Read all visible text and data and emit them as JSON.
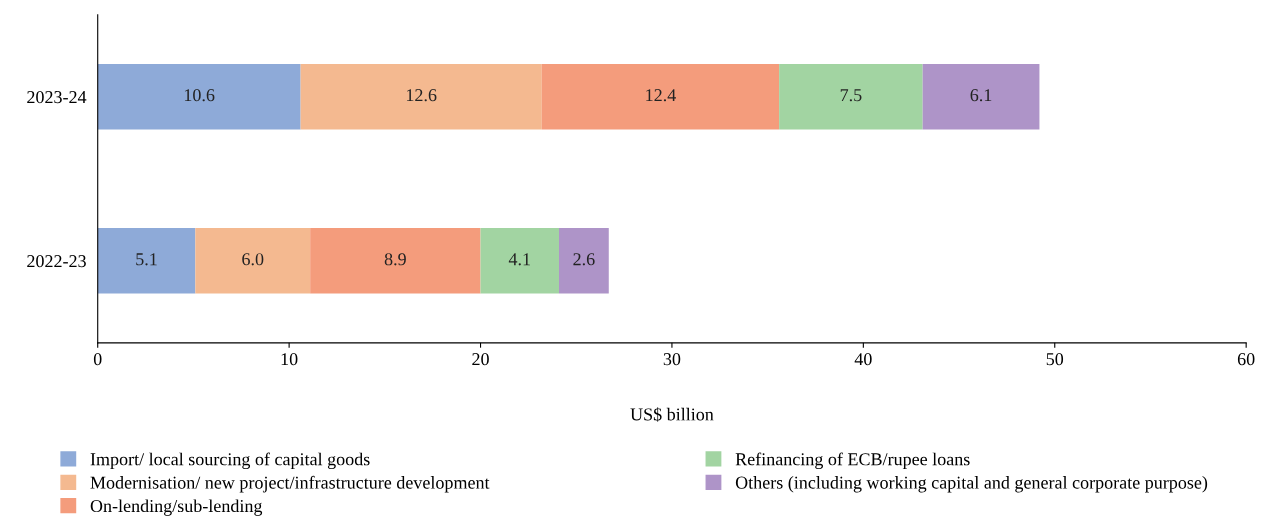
{
  "chart_data": {
    "type": "bar",
    "orientation": "horizontal",
    "stacked": true,
    "xlabel": "US$ billion",
    "categories": [
      "2023-24",
      "2022-23"
    ],
    "xlim": [
      0,
      60
    ],
    "xticks": [
      0,
      10,
      20,
      30,
      40,
      50,
      60
    ],
    "grid": false,
    "legend": "bottom",
    "series": [
      {
        "name": "Import/ local sourcing of capital goods",
        "color": "#8eaad8",
        "values": [
          10.6,
          5.1
        ],
        "value_labels": [
          "10.6",
          "5.1"
        ]
      },
      {
        "name": "Modernisation/ new project/infrastructure development",
        "color": "#f4b990",
        "values": [
          12.6,
          6.0
        ],
        "value_labels": [
          "12.6",
          "6.0"
        ]
      },
      {
        "name": "On-lending/sub-lending",
        "color": "#f49c7c",
        "values": [
          12.4,
          8.9
        ],
        "value_labels": [
          "12.4",
          "8.9"
        ]
      },
      {
        "name": "Refinancing of ECB/rupee loans",
        "color": "#a2d4a2",
        "values": [
          7.5,
          4.1
        ],
        "value_labels": [
          "7.5",
          "4.1"
        ]
      },
      {
        "name": "Others (including working capital and general corporate purpose)",
        "color": "#ae94c8",
        "values": [
          6.1,
          2.6
        ],
        "value_labels": [
          "6.1",
          "2.6"
        ]
      }
    ]
  }
}
